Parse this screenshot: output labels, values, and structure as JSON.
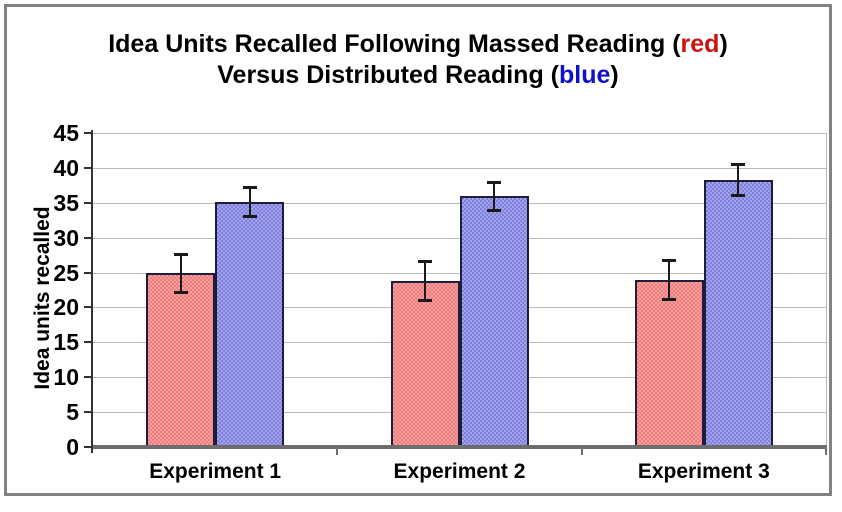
{
  "chart_title": {
    "line1": [
      {
        "text": "Idea Units Recalled Following Massed Reading ("
      },
      {
        "text": "red",
        "color": "#cc1111"
      },
      {
        "text": ")"
      }
    ],
    "line2": [
      {
        "text": "Versus Distributed Reading ("
      },
      {
        "text": "blue",
        "color": "#1111cc"
      },
      {
        "text": ")"
      }
    ]
  },
  "chart_data": {
    "type": "bar",
    "title": "Idea Units Recalled Following Massed Reading (red) Versus Distributed Reading (blue)",
    "categories": [
      "Experiment 1",
      "Experiment 2",
      "Experiment 3"
    ],
    "series": [
      {
        "name": "Massed Reading",
        "legend_word": "red",
        "fill": "#f07c7c",
        "values": [
          24.9,
          23.8,
          23.9
        ],
        "error": [
          2.8,
          2.9,
          2.9
        ]
      },
      {
        "name": "Distributed Reading",
        "legend_word": "blue",
        "fill": "#8080e0",
        "values": [
          35.1,
          35.9,
          38.2
        ],
        "error": [
          2.2,
          2.1,
          2.3
        ]
      }
    ],
    "xlabel": "",
    "ylabel": "Idea units recalled",
    "ylim": [
      0,
      45
    ],
    "yticks": [
      0,
      5,
      10,
      15,
      20,
      25,
      30,
      35,
      40,
      45
    ],
    "grid": true,
    "legend_position": "encoded-in-title-colors"
  },
  "palette": {
    "bar_border": "#1e1e3c",
    "error_bar": "#1a1a1a",
    "gridline": "#bababa",
    "axis_line": "#333333",
    "baseline": "#6e6e6e",
    "frame_border": "#828282",
    "background": "#ffffff",
    "text": "#000000"
  }
}
